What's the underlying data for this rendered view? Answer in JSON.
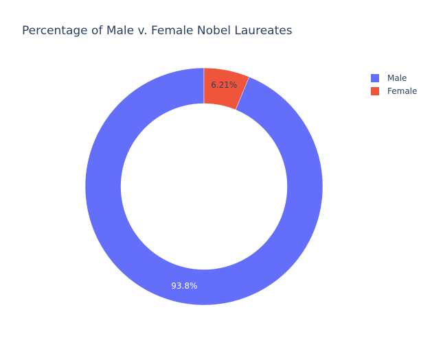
{
  "chart_data": {
    "type": "pie",
    "hole": true,
    "title": "Percentage of Male v. Female Nobel Laureates",
    "labels": [
      "Male",
      "Female"
    ],
    "values": [
      93.79,
      6.21
    ],
    "text_labels": [
      "93.8%",
      "6.21%"
    ],
    "colors": [
      "#636efa",
      "#ef553b"
    ],
    "label_colors": [
      "#ffffff",
      "#2a3f5f"
    ],
    "legend": {
      "position": "top-right",
      "entries": [
        "Male",
        "Female"
      ]
    }
  }
}
